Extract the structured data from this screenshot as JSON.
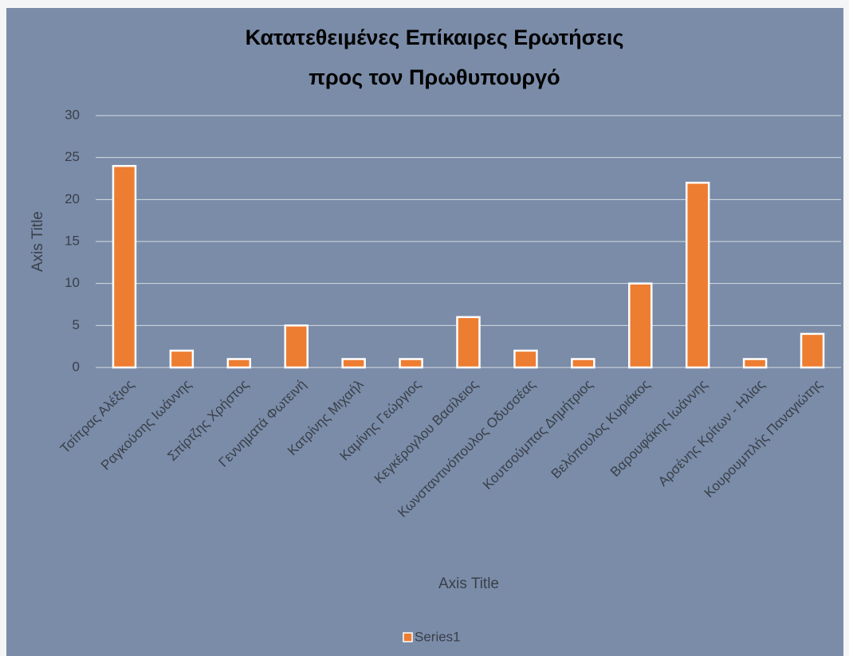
{
  "chart_data": {
    "type": "bar",
    "title": [
      "Κατατεθειμένες Επίκαιρες Ερωτήσεις",
      "προς τον Πρωθυπουργό"
    ],
    "categories": [
      "Τσίπρας Αλέξιος",
      "Ραγκούσης Ιωάννης",
      "Σπίρτζης Χρήστος",
      "Γεννηματά Φωτεινή",
      "Κατρίνης Μιχαήλ",
      "Καμίνης Γεώργιος",
      "Κεγκέρογλου Βασίλειος",
      "Κωνσταντινόπουλος Οδυσσέας",
      "Κουτσούμπας Δημήτριος",
      "Βελόπουλος Κυριάκος",
      "Βαρουφάκης Ιωάννης",
      "Αρσένης Κρίτων - Ηλίας",
      "Κουρουμπλής Παναγιώτης"
    ],
    "series": [
      {
        "name": "Series1",
        "color": "#ed7d31",
        "values": [
          24,
          2,
          1,
          5,
          1,
          1,
          6,
          2,
          1,
          10,
          22,
          1,
          4
        ]
      }
    ],
    "x_label": "Axis Title",
    "y_label": "Axis Title",
    "ylim": [
      0,
      30
    ],
    "yticks": [
      0,
      5,
      10,
      15,
      20,
      25,
      30
    ],
    "grid": true,
    "legend": "bottom"
  }
}
